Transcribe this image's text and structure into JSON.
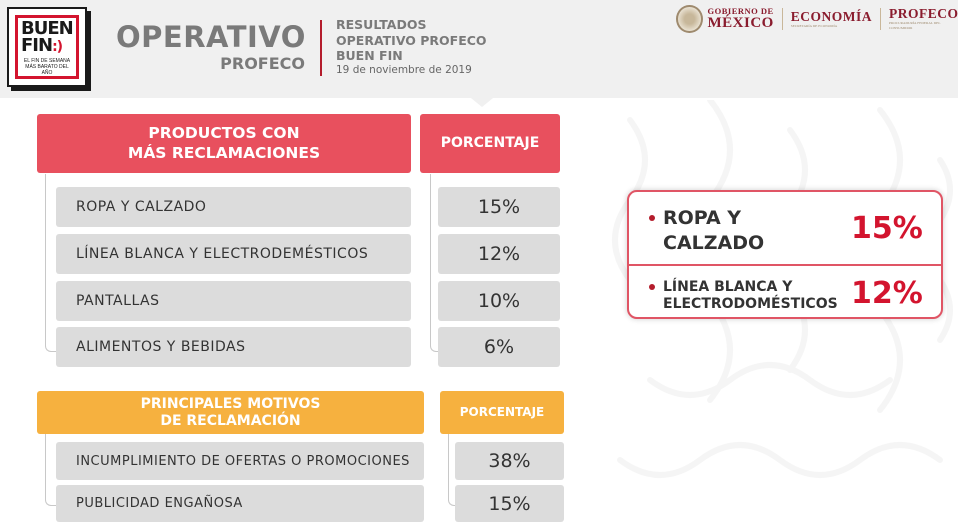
{
  "logo": {
    "line1": "BUEN",
    "line2": "FIN",
    "smile": ":)",
    "tagline": "EL FIN DE SEMANA MÁS BARATO DEL AÑO"
  },
  "header": {
    "title": "OPERATIVO",
    "subtitle": "PROFECO",
    "results_lines": [
      "RESULTADOS",
      "OPERATIVO PROFECO",
      "BUEN FIN"
    ],
    "date": "19 de noviembre de 2019"
  },
  "gov": {
    "gobierno_small": "GOBIERNO DE",
    "gobierno_big": "MÉXICO",
    "economia": "ECONOMÍA",
    "economia_small": "SECRETARÍA DE ECONOMÍA",
    "profeco": "PROFECO",
    "profeco_small": "PROCURADURÍA FEDERAL DEL CONSUMIDOR"
  },
  "products_table": {
    "header": [
      "PRODUCTOS CON",
      "MÁS RECLAMACIONES"
    ],
    "pct_header": "PORCENTAJE",
    "rows": [
      {
        "label": "ROPA Y CALZADO",
        "pct": "15%"
      },
      {
        "label": "LÍNEA BLANCA Y ELECTRODEMÉSTICOS",
        "pct": "12%"
      },
      {
        "label": "PANTALLAS",
        "pct": "10%"
      },
      {
        "label": "ALIMENTOS Y BEBIDAS",
        "pct": "6%"
      }
    ]
  },
  "reasons_table": {
    "header": [
      "PRINCIPALES MOTIVOS",
      "DE RECLAMACIÓN"
    ],
    "pct_header": "PORCENTAJE",
    "rows": [
      {
        "label": "INCUMPLIMIENTO DE OFERTAS O PROMOCIONES",
        "pct": "38%"
      },
      {
        "label": "PUBLICIDAD ENGAÑOSA",
        "pct": "15%"
      }
    ]
  },
  "highlight": {
    "item1": {
      "line1": "ROPA Y",
      "line2": "CALZADO",
      "pct": "15%"
    },
    "item2": {
      "line1": "LÍNEA BLANCA Y",
      "line2": "ELECTRODOMÉSTICOS",
      "pct": "12%"
    }
  },
  "colors": {
    "red": "#e8505e",
    "orange": "#f6b13f",
    "accent": "#d3142e",
    "gray_row": "#dcdcdc",
    "gov": "#8a1c2e"
  }
}
